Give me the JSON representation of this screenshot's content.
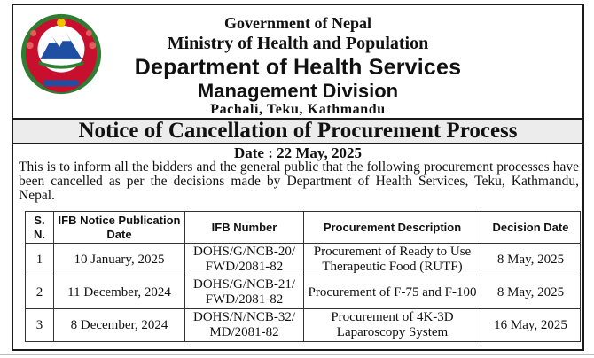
{
  "header": {
    "government": "Government of Nepal",
    "ministry": "Ministry of Health and Population",
    "department": "Department of Health Services",
    "division": "Management Division",
    "address": "Pachali, Teku, Kathmandu"
  },
  "notice": {
    "title": "Notice of Cancellation of Procurement Process",
    "date": "Date : 22 May, 2025",
    "body": "This is to inform all the bidders and the general public that the following procurement processes have been cancelled as per the decisions made by Department of Health Services, Teku, Kathmandu, Nepal."
  },
  "table": {
    "headers": {
      "sn": "S. N.",
      "ifb_date": "IFB Notice Publication Date",
      "ifb_number": "IFB Number",
      "description": "Procurement Description",
      "decision_date": "Decision Date"
    },
    "rows": [
      {
        "sn": "1",
        "ifb_date": "10 January, 2025",
        "ifb_number": "DOHS/G/NCB-20/ FWD/2081-82",
        "description": "Procurement of Ready to Use Therapeutic Food (RUTF)",
        "decision_date": "8 May, 2025"
      },
      {
        "sn": "2",
        "ifb_date": "11 December, 2024",
        "ifb_number": "DOHS/G/NCB-21/ FWD/2081-82",
        "description": "Procurement of F-75 and F-100",
        "decision_date": "8 May, 2025"
      },
      {
        "sn": "3",
        "ifb_date": "8 December, 2024",
        "ifb_number": "DOHS/N/NCB-32/ MD/2081-82",
        "description": "Procurement of 4K-3D Laparoscopy System",
        "decision_date": "16 May, 2025"
      }
    ]
  },
  "colors": {
    "emblem_red": "#c8102e",
    "emblem_blue": "#1f4fa3",
    "emblem_green": "#2f7d32"
  }
}
